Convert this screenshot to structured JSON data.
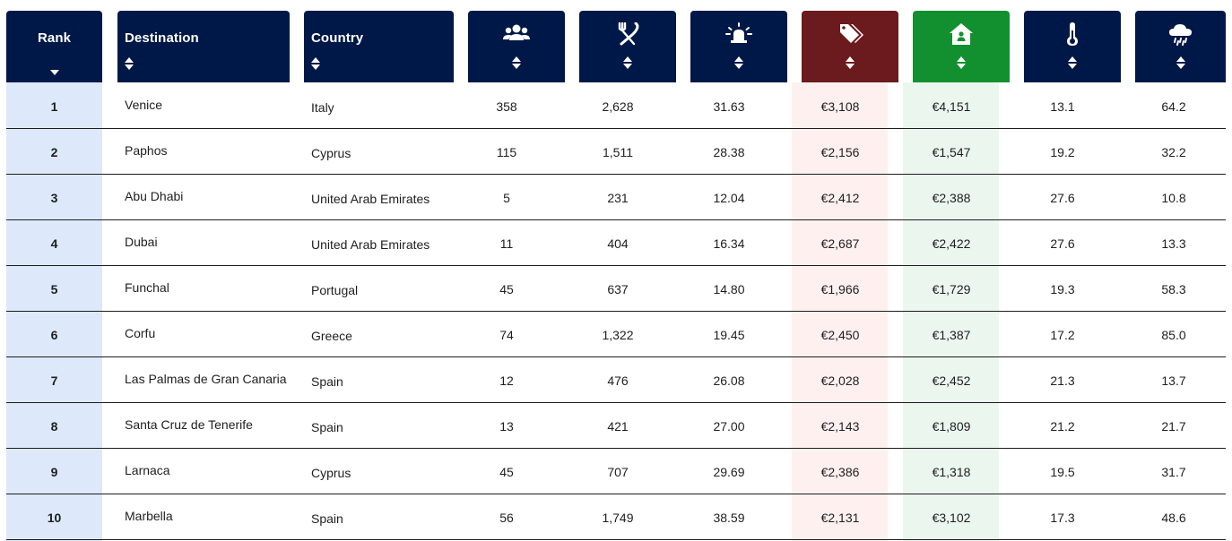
{
  "headers": {
    "rank": "Rank",
    "destination": "Destination",
    "country": "Country"
  },
  "icons": {
    "col4": "people-icon",
    "col5": "fork-knife-icon",
    "col6": "siren-icon",
    "col7": "price-tags-icon",
    "col8": "house-icon",
    "col9": "thermometer-icon",
    "col10": "rain-cloud-icon"
  },
  "colors": {
    "header": "#001847",
    "price_header": "#6b1a1e",
    "housing_header": "#12902f",
    "rank_bg": "#dde9fb",
    "price_bg": "#fff0f0",
    "housing_bg": "#ebf7ee"
  },
  "rows": [
    {
      "rank": "1",
      "destination": "Venice",
      "country": "Italy",
      "c4": "358",
      "c5": "2,628",
      "c6": "31.63",
      "c7": "€3,108",
      "c8": "€4,151",
      "c9": "13.1",
      "c10": "64.2"
    },
    {
      "rank": "2",
      "destination": "Paphos",
      "country": "Cyprus",
      "c4": "115",
      "c5": "1,511",
      "c6": "28.38",
      "c7": "€2,156",
      "c8": "€1,547",
      "c9": "19.2",
      "c10": "32.2"
    },
    {
      "rank": "3",
      "destination": "Abu Dhabi",
      "country": "United Arab Emirates",
      "c4": "5",
      "c5": "231",
      "c6": "12.04",
      "c7": "€2,412",
      "c8": "€2,388",
      "c9": "27.6",
      "c10": "10.8"
    },
    {
      "rank": "4",
      "destination": "Dubai",
      "country": "United Arab Emirates",
      "c4": "11",
      "c5": "404",
      "c6": "16.34",
      "c7": "€2,687",
      "c8": "€2,422",
      "c9": "27.6",
      "c10": "13.3"
    },
    {
      "rank": "5",
      "destination": "Funchal",
      "country": "Portugal",
      "c4": "45",
      "c5": "637",
      "c6": "14.80",
      "c7": "€1,966",
      "c8": "€1,729",
      "c9": "19.3",
      "c10": "58.3"
    },
    {
      "rank": "6",
      "destination": "Corfu",
      "country": "Greece",
      "c4": "74",
      "c5": "1,322",
      "c6": "19.45",
      "c7": "€2,450",
      "c8": "€1,387",
      "c9": "17.2",
      "c10": "85.0"
    },
    {
      "rank": "7",
      "destination": "Las Palmas de Gran Canaria",
      "country": "Spain",
      "c4": "12",
      "c5": "476",
      "c6": "26.08",
      "c7": "€2,028",
      "c8": "€2,452",
      "c9": "21.3",
      "c10": "13.7"
    },
    {
      "rank": "8",
      "destination": "Santa Cruz de Tenerife",
      "country": "Spain",
      "c4": "13",
      "c5": "421",
      "c6": "27.00",
      "c7": "€2,143",
      "c8": "€1,809",
      "c9": "21.2",
      "c10": "21.7"
    },
    {
      "rank": "9",
      "destination": "Larnaca",
      "country": "Cyprus",
      "c4": "45",
      "c5": "707",
      "c6": "29.69",
      "c7": "€2,386",
      "c8": "€1,318",
      "c9": "19.5",
      "c10": "31.7"
    },
    {
      "rank": "10",
      "destination": "Marbella",
      "country": "Spain",
      "c4": "56",
      "c5": "1,749",
      "c6": "38.59",
      "c7": "€2,131",
      "c8": "€3,102",
      "c9": "17.3",
      "c10": "48.6"
    }
  ]
}
